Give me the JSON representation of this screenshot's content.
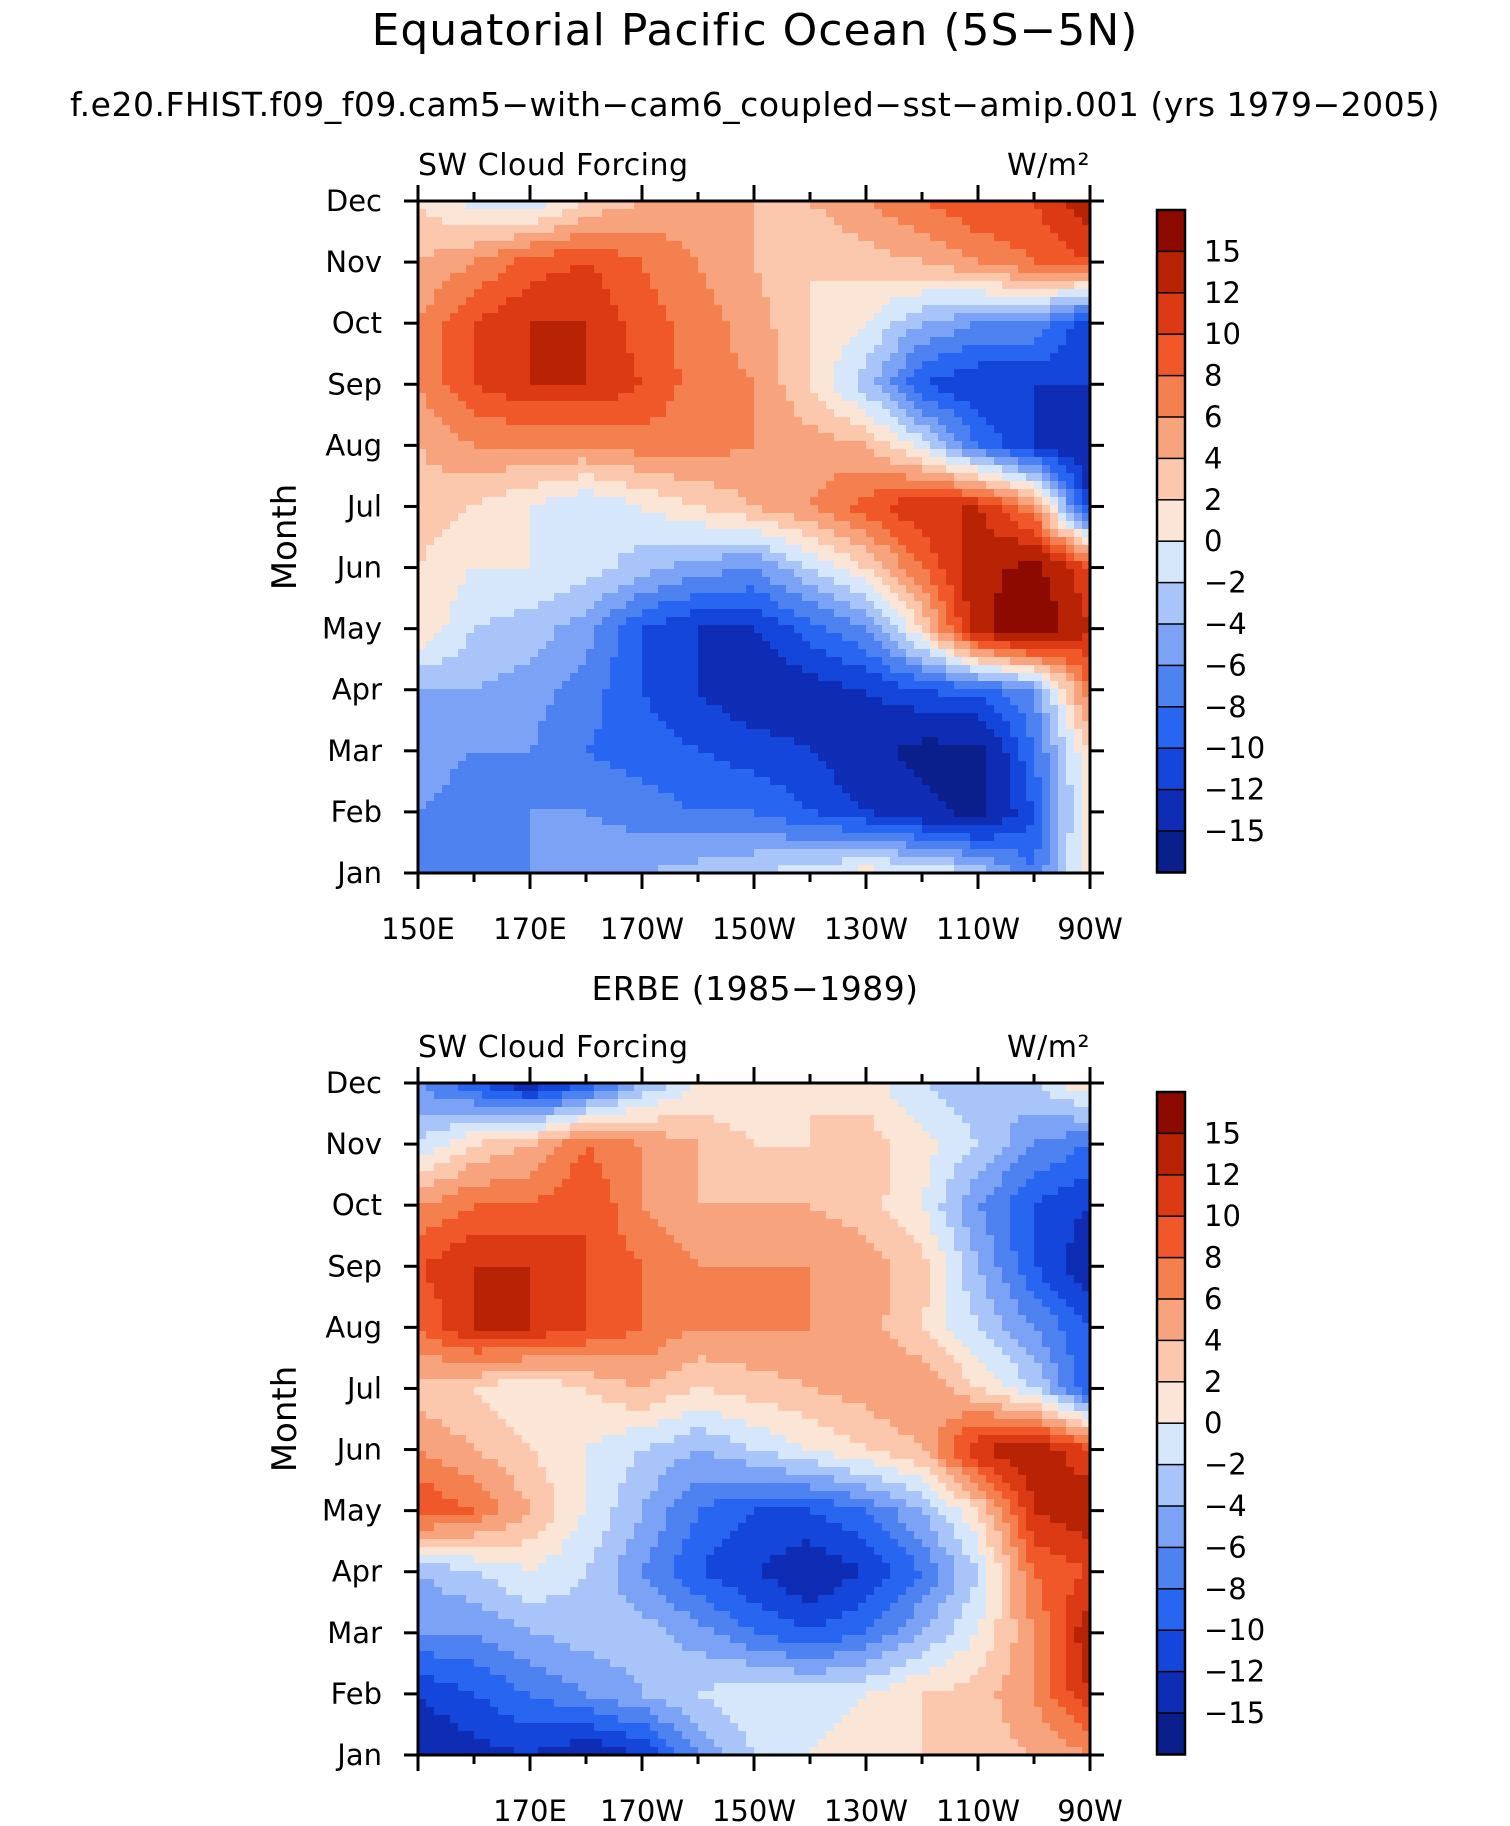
{
  "title": "Equatorial Pacific Ocean (5S−5N)",
  "subtitle": "f.e20.FHIST.f09_f09.cam5−with−cam6_coupled−sst−amip.001 (yrs 1979−2005)",
  "colormap": [
    "#0a1e8c",
    "#0f2db4",
    "#1446dc",
    "#2865f0",
    "#4e82f0",
    "#7ba2f5",
    "#a8c4f8",
    "#d6e6fb",
    "#fbe5d6",
    "#fbc8ae",
    "#f7a47e",
    "#f4804f",
    "#f0582a",
    "#dc3a14",
    "#b92305",
    "#8c0a00"
  ],
  "chart_data": [
    {
      "type": "heatmap",
      "title": "",
      "left_label": "SW Cloud Forcing",
      "units_label": "W/m²",
      "ylabel": "Month",
      "xlabel": "",
      "x_tick_labels": [
        "150E",
        "170E",
        "170W",
        "150W",
        "130W",
        "110W",
        "90W"
      ],
      "y_tick_labels": [
        "Jan",
        "Feb",
        "Mar",
        "Apr",
        "May",
        "Jun",
        "Jul",
        "Aug",
        "Sep",
        "Oct",
        "Nov",
        "Dec"
      ],
      "xlim": [
        150,
        270
      ],
      "colorbar_levels": [
        -15,
        -12,
        -10,
        -8,
        -6,
        -4,
        -2,
        0,
        2,
        4,
        6,
        8,
        10,
        12,
        15
      ],
      "colorbar_labels": [
        "15",
        "12",
        "10",
        "8",
        "6",
        "4",
        "2",
        "0",
        "−2",
        "−4",
        "−6",
        "−8",
        "−10",
        "−12",
        "−15"
      ],
      "lon": [
        150,
        160,
        170,
        180,
        190,
        200,
        210,
        220,
        230,
        240,
        250,
        260,
        270
      ],
      "values": [
        [
          -6,
          -8,
          -6,
          -4,
          -4,
          -3,
          -2,
          -1,
          1,
          0,
          -2,
          -8,
          2
        ],
        [
          -6,
          -8,
          -6,
          -6,
          -7,
          -8,
          -8,
          -10,
          -12,
          -14,
          -16,
          -10,
          2
        ],
        [
          -4,
          -6,
          -6,
          -8,
          -9,
          -10,
          -11,
          -12,
          -14,
          -16,
          -16,
          -8,
          2
        ],
        [
          -4,
          -4,
          -5,
          -7,
          -10,
          -12,
          -14,
          -13,
          -12,
          -10,
          -9,
          -6,
          8
        ],
        [
          2,
          -2,
          -3,
          -5,
          -10,
          -12,
          -12,
          -9,
          -6,
          2,
          14,
          18,
          12
        ],
        [
          2,
          0,
          0,
          -1,
          -3,
          -5,
          -6,
          -2,
          2,
          8,
          14,
          16,
          10
        ],
        [
          3,
          2,
          0,
          -2,
          0,
          2,
          4,
          6,
          9,
          12,
          12,
          6,
          -12
        ],
        [
          4,
          6,
          6,
          6,
          7,
          7,
          6,
          5,
          4,
          -1,
          -8,
          -12,
          -15
        ],
        [
          6,
          10,
          12,
          12,
          10,
          7,
          6,
          2,
          -3,
          -10,
          -12,
          -12,
          -12
        ],
        [
          6,
          10,
          12,
          12,
          9,
          7,
          5,
          2,
          0,
          -4,
          -6,
          -6,
          -12
        ],
        [
          4,
          6,
          9,
          10,
          8,
          6,
          4,
          2,
          3,
          4,
          6,
          8,
          10
        ],
        [
          2,
          -1,
          -2,
          2,
          4,
          5,
          4,
          4,
          6,
          8,
          10,
          10,
          14
        ]
      ]
    },
    {
      "type": "heatmap",
      "title": "ERBE (1985−1989)",
      "left_label": "SW Cloud Forcing",
      "units_label": "W/m²",
      "ylabel": "Month",
      "xlabel": "",
      "x_tick_labels": [
        "170E",
        "170W",
        "150W",
        "130W",
        "110W",
        "90W"
      ],
      "y_tick_labels": [
        "Jan",
        "Feb",
        "Mar",
        "Apr",
        "May",
        "Jun",
        "Jul",
        "Aug",
        "Sep",
        "Oct",
        "Nov",
        "Dec"
      ],
      "xlim": [
        150,
        270
      ],
      "colorbar_levels": [
        -15,
        -12,
        -10,
        -8,
        -6,
        -4,
        -2,
        0,
        2,
        4,
        6,
        8,
        10,
        12,
        15
      ],
      "colorbar_labels": [
        "15",
        "12",
        "10",
        "8",
        "6",
        "4",
        "2",
        "0",
        "−2",
        "−4",
        "−6",
        "−8",
        "−10",
        "−12",
        "−15"
      ],
      "lon": [
        150,
        160,
        170,
        180,
        190,
        200,
        210,
        220,
        230,
        240,
        250,
        260,
        270
      ],
      "values": [
        [
          -14,
          -13,
          -12,
          -14,
          -12,
          -6,
          -2,
          0,
          1,
          2,
          3,
          4,
          6
        ],
        [
          -12,
          -10,
          -8,
          -6,
          -4,
          -2,
          0,
          -1,
          0,
          2,
          3,
          6,
          12
        ],
        [
          -6,
          -6,
          -4,
          -3,
          -3,
          -5,
          -8,
          -10,
          -8,
          -4,
          0,
          6,
          14
        ],
        [
          -4,
          -2,
          0,
          -2,
          -6,
          -10,
          -12,
          -14,
          -12,
          -8,
          -2,
          8,
          10
        ],
        [
          10,
          8,
          4,
          0,
          -4,
          -8,
          -10,
          -10,
          -8,
          -4,
          2,
          12,
          14
        ],
        [
          6,
          4,
          2,
          0,
          -2,
          -4,
          -2,
          0,
          2,
          4,
          12,
          14,
          10
        ],
        [
          3,
          2,
          0,
          2,
          4,
          2,
          3,
          4,
          5,
          6,
          2,
          -2,
          -10
        ],
        [
          8,
          12,
          12,
          10,
          8,
          6,
          6,
          6,
          5,
          2,
          -2,
          -6,
          -10
        ],
        [
          10,
          12,
          12,
          10,
          8,
          6,
          6,
          6,
          5,
          3,
          -4,
          -10,
          -14
        ],
        [
          6,
          8,
          8,
          10,
          6,
          4,
          4,
          4,
          3,
          0,
          -6,
          -10,
          -12
        ],
        [
          -2,
          2,
          4,
          8,
          6,
          4,
          2,
          2,
          3,
          1,
          -2,
          -6,
          -8
        ],
        [
          -6,
          -10,
          -14,
          -10,
          -4,
          0,
          0,
          2,
          1,
          -2,
          -4,
          -2,
          2
        ]
      ]
    }
  ]
}
